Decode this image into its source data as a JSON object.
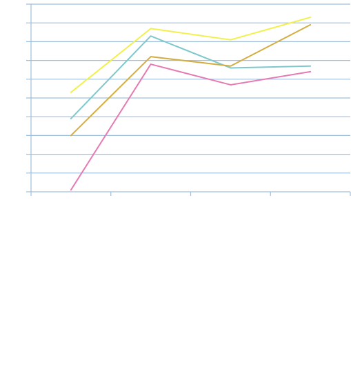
{
  "chart_data": {
    "type": "line",
    "title": "",
    "xlabel": "",
    "ylabel": "",
    "categories": [
      "",
      "",
      "",
      ""
    ],
    "ylim": [
      0,
      10
    ],
    "grid": true,
    "legend": "none",
    "series": [
      {
        "values": [
          5.3,
          8.7,
          8.1,
          9.3
        ],
        "color": "#f2f04a"
      },
      {
        "values": [
          3.9,
          8.3,
          6.6,
          6.7
        ],
        "color": "#7ec8cc"
      },
      {
        "values": [
          3.0,
          7.2,
          6.7,
          8.9
        ],
        "color": "#d4ad42"
      },
      {
        "values": [
          0.1,
          6.8,
          5.7,
          6.4
        ],
        "color": "#e67bb4"
      }
    ]
  }
}
